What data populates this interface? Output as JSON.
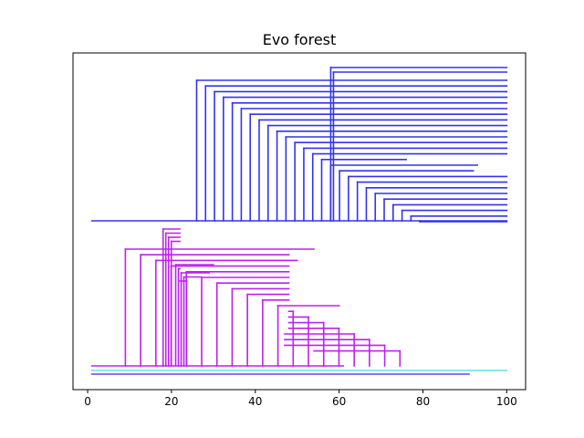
{
  "chart_data": {
    "type": "tree",
    "title": "Evo forest",
    "xlabel": "",
    "ylabel": "",
    "xlim": [
      -3.5,
      104.5
    ],
    "xticks": [
      "0",
      "20",
      "40",
      "60",
      "80",
      "100"
    ],
    "grid": false,
    "legend": "none",
    "series": [
      {
        "color": "#3333ee",
        "root": 1,
        "root_end": 100,
        "branches": [
          {
            "start": 26,
            "parent_end": 100,
            "tips": [
              100,
              100,
              100,
              100,
              100,
              100,
              100,
              100,
              100,
              100,
              100,
              100,
              100,
              100,
              76,
              93,
              92,
              100,
              100,
              100,
              100,
              100,
              100,
              100,
              100,
              100
            ]
          },
          {
            "start": 58,
            "tips": [
              100,
              100
            ]
          }
        ]
      },
      {
        "color": "#bb22ee",
        "root": 1,
        "root_end": 61,
        "branches": [
          {
            "start": 9,
            "tips": [
              54,
              48,
              50,
              48,
              48,
              48,
              48,
              48,
              48,
              48,
              60,
              48,
              48,
              48,
              48,
              47,
              47,
              47,
              54
            ]
          },
          {
            "start": 18,
            "tips": [
              22,
              22,
              22,
              22
            ]
          },
          {
            "start": 21,
            "tips": [
              30,
              22,
              29,
              27,
              22
            ]
          }
        ]
      },
      {
        "color": "#66ddee",
        "root": 1,
        "root_end": 100,
        "branches": []
      },
      {
        "color": "#6644ee",
        "root": 1,
        "root_end": 91,
        "branches": []
      }
    ]
  }
}
